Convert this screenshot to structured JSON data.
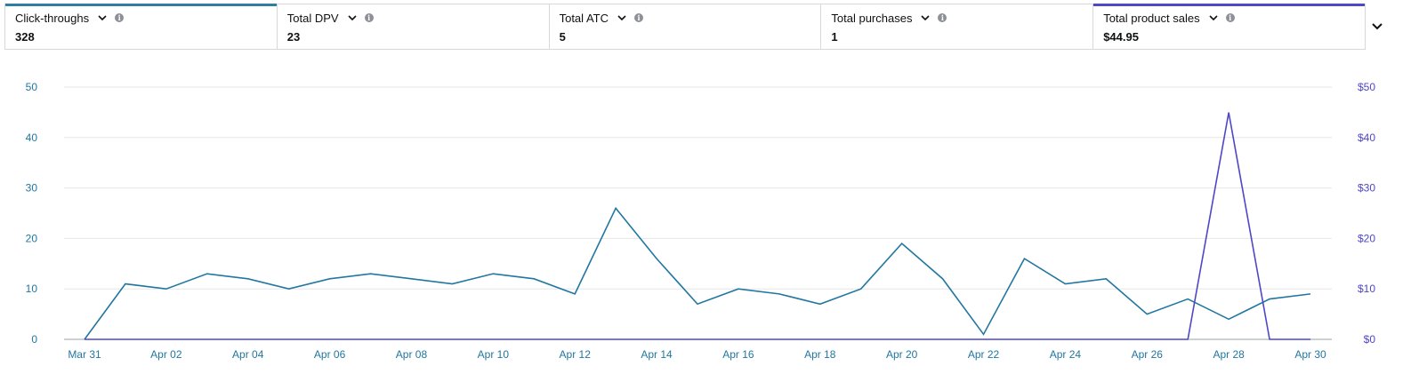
{
  "metrics": [
    {
      "label": "Click-throughs",
      "value": "328",
      "accent": "#2e7ea3",
      "selected": true
    },
    {
      "label": "Total DPV",
      "value": "23",
      "accent": null,
      "selected": false
    },
    {
      "label": "Total ATC",
      "value": "5",
      "accent": null,
      "selected": false
    },
    {
      "label": "Total purchases",
      "value": "1",
      "accent": null,
      "selected": false
    },
    {
      "label": "Total product sales",
      "value": "$44.95",
      "accent": "#4f46c8",
      "selected": true
    }
  ],
  "colors": {
    "series1": "#2177a0",
    "series2": "#4f46c8",
    "left_axis_text": "#2177a0",
    "right_axis_text": "#4f46c8",
    "x_axis_text": "#2177a0",
    "grid": "#e6e6e6",
    "baseline": "#9aa0a6"
  },
  "icons": {
    "dropdown": "chevron-down-icon",
    "info": "info-icon",
    "expand": "chevron-down-icon"
  },
  "chart_data": {
    "type": "line",
    "x": [
      "Mar 31",
      "Apr 01",
      "Apr 02",
      "Apr 03",
      "Apr 04",
      "Apr 05",
      "Apr 06",
      "Apr 07",
      "Apr 08",
      "Apr 09",
      "Apr 10",
      "Apr 11",
      "Apr 12",
      "Apr 13",
      "Apr 14",
      "Apr 15",
      "Apr 16",
      "Apr 17",
      "Apr 18",
      "Apr 19",
      "Apr 20",
      "Apr 21",
      "Apr 22",
      "Apr 23",
      "Apr 24",
      "Apr 25",
      "Apr 26",
      "Apr 27",
      "Apr 28",
      "Apr 29",
      "Apr 30"
    ],
    "x_tick_labels": [
      "Mar 31",
      "Apr 02",
      "Apr 04",
      "Apr 06",
      "Apr 08",
      "Apr 10",
      "Apr 12",
      "Apr 14",
      "Apr 16",
      "Apr 18",
      "Apr 20",
      "Apr 22",
      "Apr 24",
      "Apr 26",
      "Apr 28",
      "Apr 30"
    ],
    "series": [
      {
        "axis": "left",
        "values": [
          0,
          11,
          10,
          13,
          12,
          10,
          12,
          13,
          12,
          11,
          13,
          12,
          9,
          26,
          16,
          7,
          10,
          9,
          7,
          10,
          19,
          12,
          1,
          16,
          11,
          12,
          5,
          8,
          4,
          8,
          9
        ]
      },
      {
        "axis": "right",
        "values": [
          0,
          0,
          0,
          0,
          0,
          0,
          0,
          0,
          0,
          0,
          0,
          0,
          0,
          0,
          0,
          0,
          0,
          0,
          0,
          0,
          0,
          0,
          0,
          0,
          0,
          0,
          0,
          0,
          44.95,
          0,
          0
        ]
      }
    ],
    "y_left": {
      "ticks": [
        "0",
        "10",
        "20",
        "30",
        "40",
        "50"
      ],
      "ylim": [
        0,
        50
      ]
    },
    "y_right": {
      "ticks": [
        "$0",
        "$10",
        "$20",
        "$30",
        "$40",
        "$50"
      ],
      "ylim": [
        0,
        50
      ]
    },
    "grid": true,
    "title": "",
    "xlabel": "",
    "ylabel": ""
  }
}
